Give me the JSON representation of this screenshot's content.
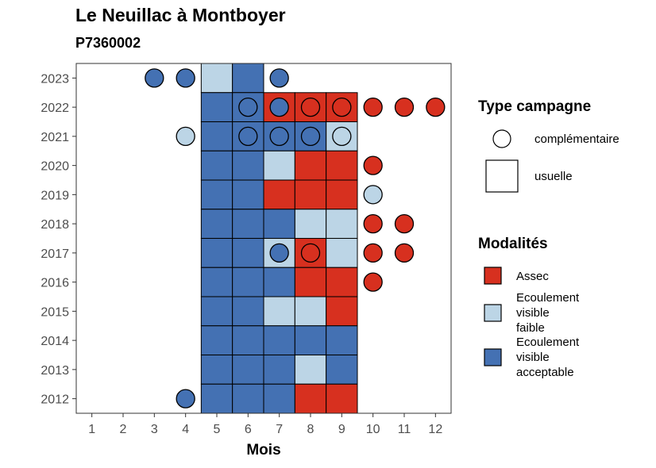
{
  "title": "Le Neuillac à Montboyer",
  "subtitle": "P7360002",
  "chart_data": {
    "type": "heatmap",
    "xlabel": "Mois",
    "ylabel": "",
    "x_ticks": [
      1,
      2,
      3,
      4,
      5,
      6,
      7,
      8,
      9,
      10,
      11,
      12
    ],
    "y_ticks": [
      2012,
      2013,
      2014,
      2015,
      2016,
      2017,
      2018,
      2019,
      2020,
      2021,
      2022,
      2023
    ],
    "xlim": [
      0.5,
      12.5
    ],
    "ylim": [
      2011.5,
      2023.5
    ],
    "grid": false,
    "colors": {
      "Assec": "#d7301f",
      "Ecoulement visible faible": "#bcd5e6",
      "Ecoulement visible acceptable": "#4471b3"
    },
    "usuelle": [
      {
        "year": 2023,
        "month": 5,
        "modalite": "Ecoulement visible faible"
      },
      {
        "year": 2023,
        "month": 6,
        "modalite": "Ecoulement visible acceptable"
      },
      {
        "year": 2022,
        "month": 5,
        "modalite": "Ecoulement visible acceptable"
      },
      {
        "year": 2022,
        "month": 6,
        "modalite": "Ecoulement visible acceptable"
      },
      {
        "year": 2022,
        "month": 7,
        "modalite": "Assec"
      },
      {
        "year": 2022,
        "month": 8,
        "modalite": "Assec"
      },
      {
        "year": 2022,
        "month": 9,
        "modalite": "Assec"
      },
      {
        "year": 2021,
        "month": 5,
        "modalite": "Ecoulement visible acceptable"
      },
      {
        "year": 2021,
        "month": 6,
        "modalite": "Ecoulement visible acceptable"
      },
      {
        "year": 2021,
        "month": 7,
        "modalite": "Ecoulement visible acceptable"
      },
      {
        "year": 2021,
        "month": 8,
        "modalite": "Ecoulement visible acceptable"
      },
      {
        "year": 2021,
        "month": 9,
        "modalite": "Ecoulement visible faible"
      },
      {
        "year": 2020,
        "month": 5,
        "modalite": "Ecoulement visible acceptable"
      },
      {
        "year": 2020,
        "month": 6,
        "modalite": "Ecoulement visible acceptable"
      },
      {
        "year": 2020,
        "month": 7,
        "modalite": "Ecoulement visible faible"
      },
      {
        "year": 2020,
        "month": 8,
        "modalite": "Assec"
      },
      {
        "year": 2020,
        "month": 9,
        "modalite": "Assec"
      },
      {
        "year": 2019,
        "month": 5,
        "modalite": "Ecoulement visible acceptable"
      },
      {
        "year": 2019,
        "month": 6,
        "modalite": "Ecoulement visible acceptable"
      },
      {
        "year": 2019,
        "month": 7,
        "modalite": "Assec"
      },
      {
        "year": 2019,
        "month": 8,
        "modalite": "Assec"
      },
      {
        "year": 2019,
        "month": 9,
        "modalite": "Assec"
      },
      {
        "year": 2018,
        "month": 5,
        "modalite": "Ecoulement visible acceptable"
      },
      {
        "year": 2018,
        "month": 6,
        "modalite": "Ecoulement visible acceptable"
      },
      {
        "year": 2018,
        "month": 7,
        "modalite": "Ecoulement visible acceptable"
      },
      {
        "year": 2018,
        "month": 8,
        "modalite": "Ecoulement visible faible"
      },
      {
        "year": 2018,
        "month": 9,
        "modalite": "Ecoulement visible faible"
      },
      {
        "year": 2017,
        "month": 5,
        "modalite": "Ecoulement visible acceptable"
      },
      {
        "year": 2017,
        "month": 6,
        "modalite": "Ecoulement visible acceptable"
      },
      {
        "year": 2017,
        "month": 7,
        "modalite": "Ecoulement visible faible"
      },
      {
        "year": 2017,
        "month": 8,
        "modalite": "Assec"
      },
      {
        "year": 2017,
        "month": 9,
        "modalite": "Ecoulement visible faible"
      },
      {
        "year": 2016,
        "month": 5,
        "modalite": "Ecoulement visible acceptable"
      },
      {
        "year": 2016,
        "month": 6,
        "modalite": "Ecoulement visible acceptable"
      },
      {
        "year": 2016,
        "month": 7,
        "modalite": "Ecoulement visible acceptable"
      },
      {
        "year": 2016,
        "month": 8,
        "modalite": "Assec"
      },
      {
        "year": 2016,
        "month": 9,
        "modalite": "Assec"
      },
      {
        "year": 2015,
        "month": 5,
        "modalite": "Ecoulement visible acceptable"
      },
      {
        "year": 2015,
        "month": 6,
        "modalite": "Ecoulement visible acceptable"
      },
      {
        "year": 2015,
        "month": 7,
        "modalite": "Ecoulement visible faible"
      },
      {
        "year": 2015,
        "month": 8,
        "modalite": "Ecoulement visible faible"
      },
      {
        "year": 2015,
        "month": 9,
        "modalite": "Assec"
      },
      {
        "year": 2014,
        "month": 5,
        "modalite": "Ecoulement visible acceptable"
      },
      {
        "year": 2014,
        "month": 6,
        "modalite": "Ecoulement visible acceptable"
      },
      {
        "year": 2014,
        "month": 7,
        "modalite": "Ecoulement visible acceptable"
      },
      {
        "year": 2014,
        "month": 8,
        "modalite": "Ecoulement visible acceptable"
      },
      {
        "year": 2014,
        "month": 9,
        "modalite": "Ecoulement visible acceptable"
      },
      {
        "year": 2013,
        "month": 5,
        "modalite": "Ecoulement visible acceptable"
      },
      {
        "year": 2013,
        "month": 6,
        "modalite": "Ecoulement visible acceptable"
      },
      {
        "year": 2013,
        "month": 7,
        "modalite": "Ecoulement visible acceptable"
      },
      {
        "year": 2013,
        "month": 8,
        "modalite": "Ecoulement visible faible"
      },
      {
        "year": 2013,
        "month": 9,
        "modalite": "Ecoulement visible acceptable"
      },
      {
        "year": 2012,
        "month": 5,
        "modalite": "Ecoulement visible acceptable"
      },
      {
        "year": 2012,
        "month": 6,
        "modalite": "Ecoulement visible acceptable"
      },
      {
        "year": 2012,
        "month": 7,
        "modalite": "Ecoulement visible acceptable"
      },
      {
        "year": 2012,
        "month": 8,
        "modalite": "Assec"
      },
      {
        "year": 2012,
        "month": 9,
        "modalite": "Assec"
      }
    ],
    "complementaire": [
      {
        "year": 2023,
        "month": 3,
        "modalite": "Ecoulement visible acceptable"
      },
      {
        "year": 2023,
        "month": 4,
        "modalite": "Ecoulement visible acceptable"
      },
      {
        "year": 2023,
        "month": 7,
        "modalite": "Ecoulement visible acceptable"
      },
      {
        "year": 2022,
        "month": 6,
        "modalite": "Ecoulement visible acceptable"
      },
      {
        "year": 2022,
        "month": 7,
        "modalite": "Ecoulement visible acceptable"
      },
      {
        "year": 2022,
        "month": 8,
        "modalite": "Assec"
      },
      {
        "year": 2022,
        "month": 9,
        "modalite": "Assec"
      },
      {
        "year": 2022,
        "month": 10,
        "modalite": "Assec"
      },
      {
        "year": 2022,
        "month": 11,
        "modalite": "Assec"
      },
      {
        "year": 2022,
        "month": 12,
        "modalite": "Assec"
      },
      {
        "year": 2021,
        "month": 4,
        "modalite": "Ecoulement visible faible"
      },
      {
        "year": 2021,
        "month": 6,
        "modalite": "Ecoulement visible acceptable"
      },
      {
        "year": 2021,
        "month": 7,
        "modalite": "Ecoulement visible acceptable"
      },
      {
        "year": 2021,
        "month": 8,
        "modalite": "Ecoulement visible acceptable"
      },
      {
        "year": 2021,
        "month": 9,
        "modalite": "Ecoulement visible faible"
      },
      {
        "year": 2020,
        "month": 10,
        "modalite": "Assec"
      },
      {
        "year": 2019,
        "month": 10,
        "modalite": "Ecoulement visible faible"
      },
      {
        "year": 2018,
        "month": 10,
        "modalite": "Assec"
      },
      {
        "year": 2018,
        "month": 11,
        "modalite": "Assec"
      },
      {
        "year": 2017,
        "month": 7,
        "modalite": "Ecoulement visible acceptable"
      },
      {
        "year": 2017,
        "month": 8,
        "modalite": "Assec"
      },
      {
        "year": 2017,
        "month": 10,
        "modalite": "Assec"
      },
      {
        "year": 2017,
        "month": 11,
        "modalite": "Assec"
      },
      {
        "year": 2016,
        "month": 10,
        "modalite": "Assec"
      },
      {
        "year": 2012,
        "month": 4,
        "modalite": "Ecoulement visible acceptable"
      }
    ]
  },
  "legend": {
    "type_title": "Type campagne",
    "type_items": [
      "complémentaire",
      "usuelle"
    ],
    "modalites_title": "Modalités",
    "modalites_items": [
      {
        "lines": [
          "Assec"
        ],
        "color": "#d7301f"
      },
      {
        "lines": [
          "Ecoulement",
          "visible",
          "faible"
        ],
        "color": "#bcd5e6"
      },
      {
        "lines": [
          "Ecoulement",
          "visible",
          "acceptable"
        ],
        "color": "#4471b3"
      }
    ]
  }
}
